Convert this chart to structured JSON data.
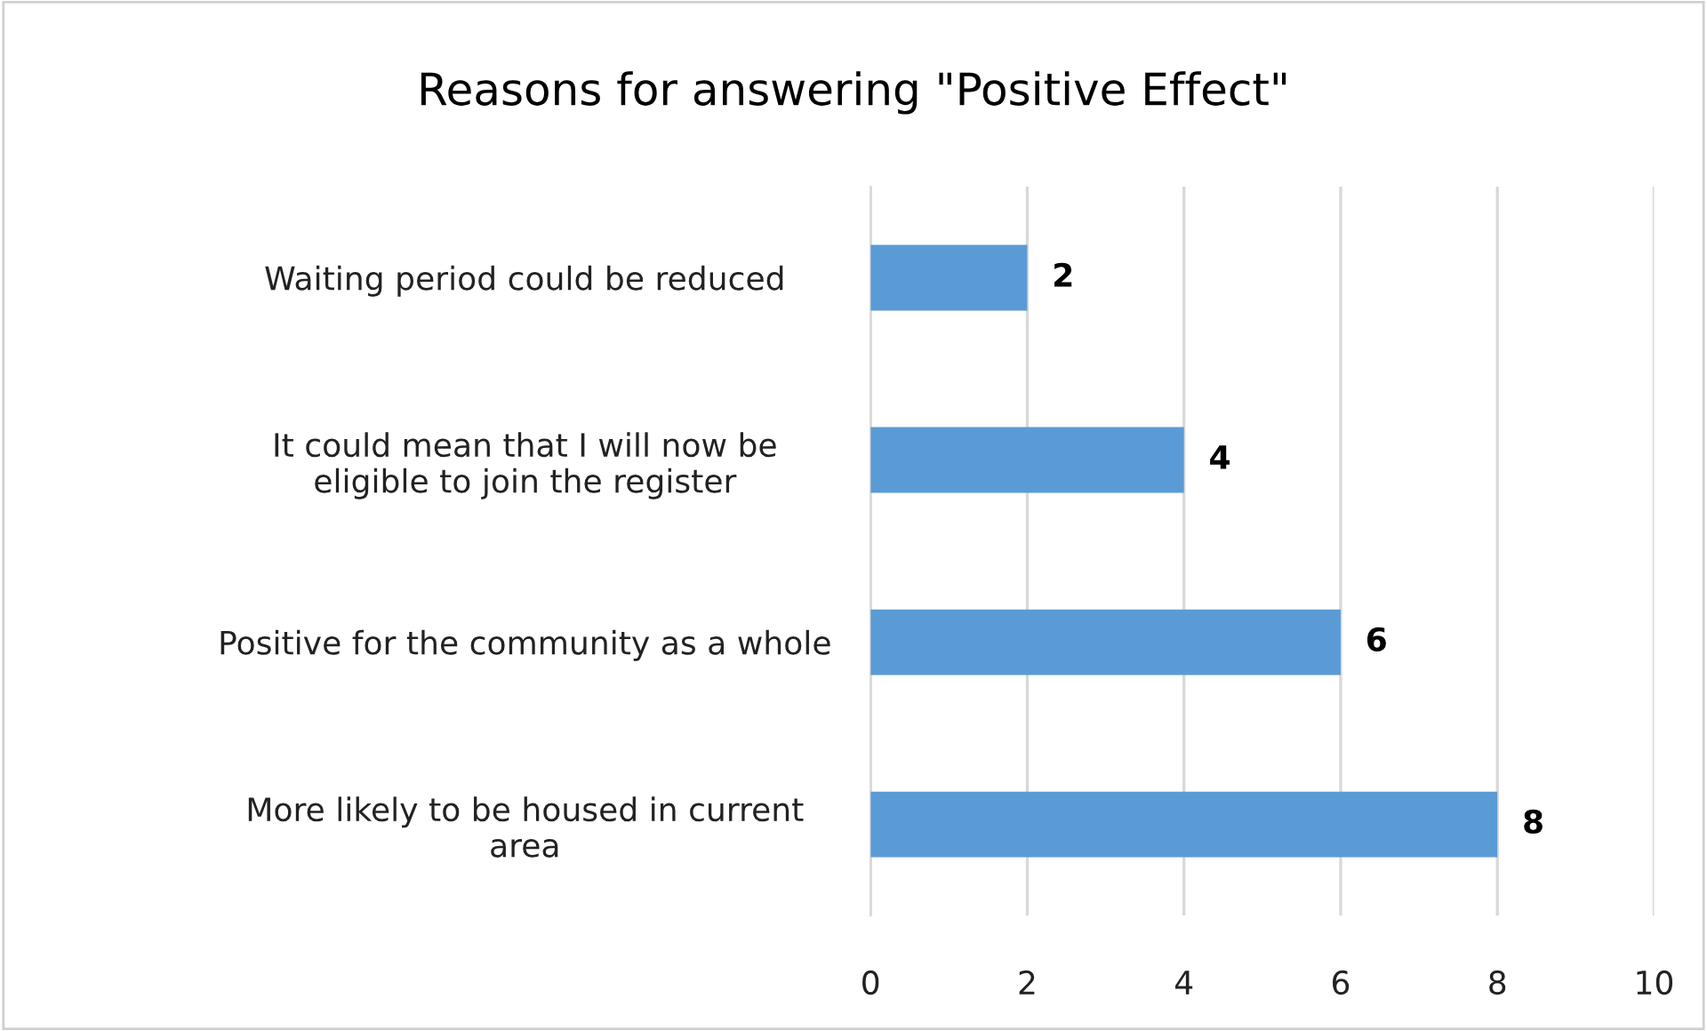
{
  "chart_data": {
    "type": "bar",
    "orientation": "horizontal",
    "title": "Reasons for answering \"Positive Effect\"",
    "categories": [
      "Waiting period could be reduced",
      "It could mean that I will now be\neligible to join the register",
      "Positive for the community as a whole",
      "More likely to be housed in current\narea"
    ],
    "values": [
      2,
      4,
      6,
      8
    ],
    "color": "#5b9bd5",
    "xlim": [
      0,
      10
    ],
    "xticks": [
      0,
      2,
      4,
      6,
      8,
      10
    ],
    "grid": "x",
    "data_labels": true
  }
}
